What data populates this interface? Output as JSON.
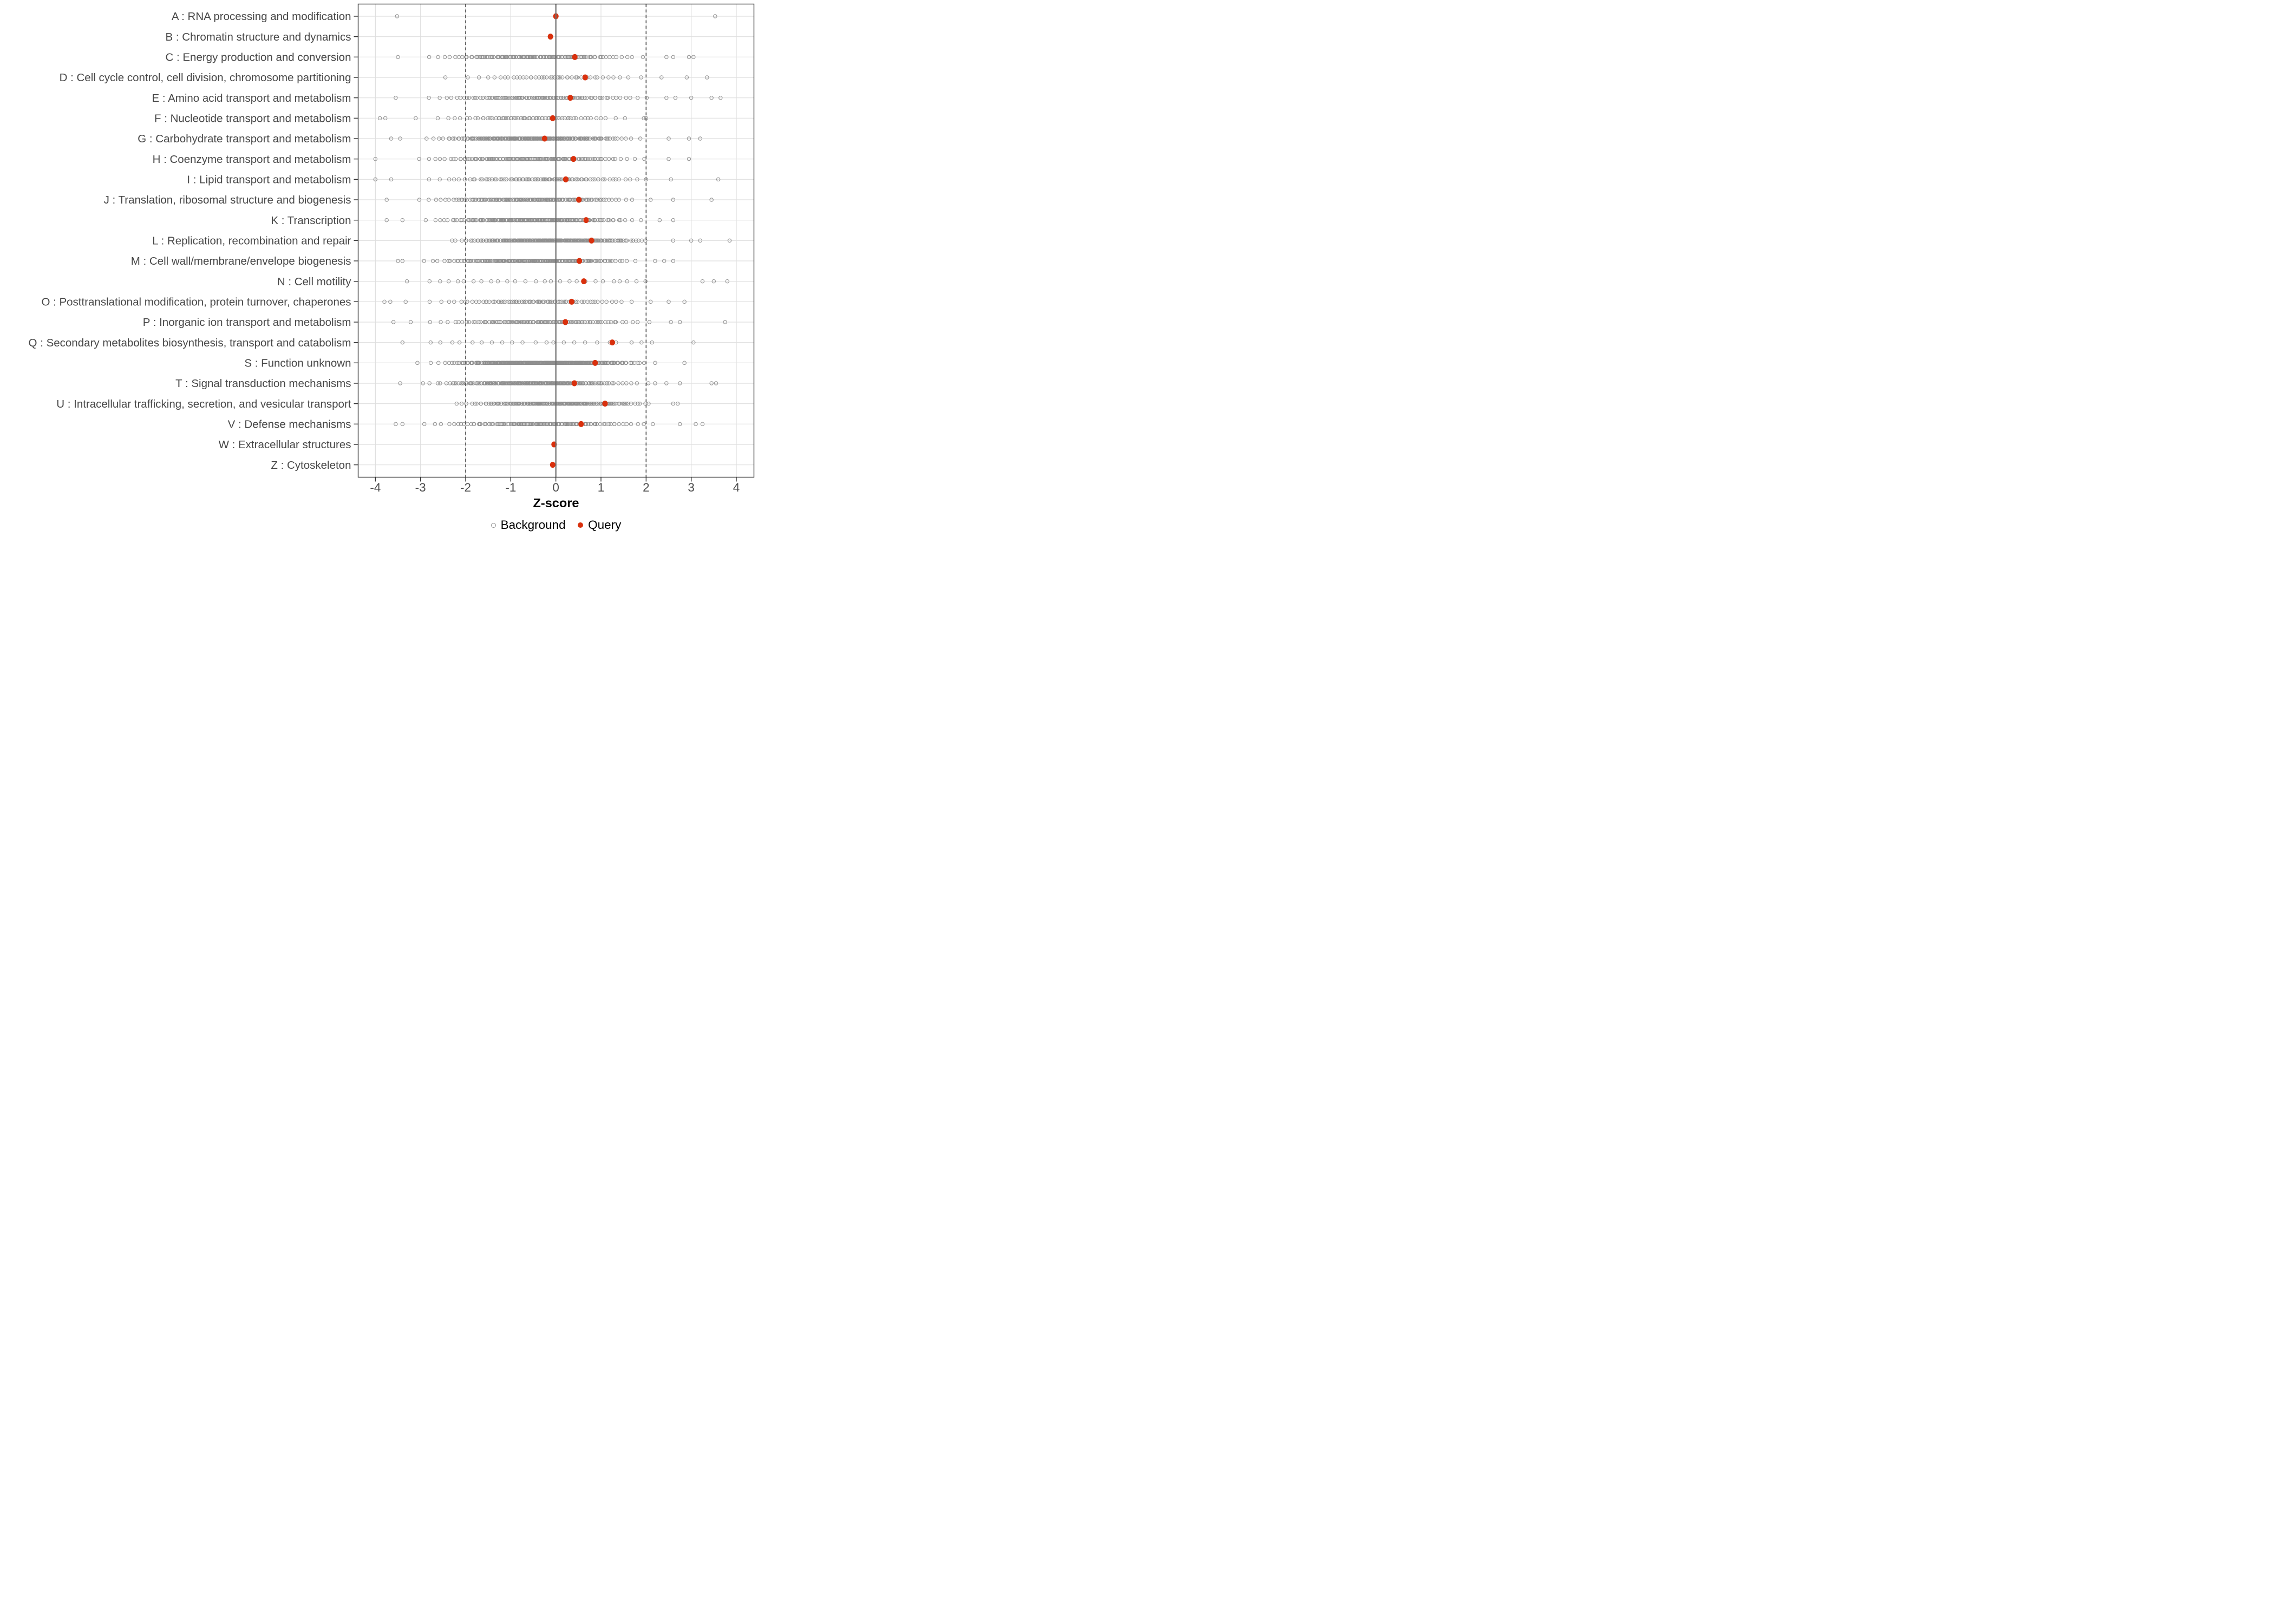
{
  "chart_data": {
    "type": "scatter",
    "variant": "horizontal-strip-plot",
    "title": "",
    "xlabel": "Z-score",
    "ylabel": "",
    "xlim": [
      -4.4,
      4.4
    ],
    "x_ticks": [
      -4,
      -3,
      -2,
      -1,
      0,
      1,
      2,
      3,
      4
    ],
    "grid": "major-only",
    "legend_position": "bottom",
    "reference_lines": {
      "solid_at": 0,
      "dashed_at": [
        -2,
        2
      ]
    },
    "colors": {
      "query": "#D9300D",
      "background_stroke": "#8F8F8F",
      "gridline": "#DEDEDE",
      "zero_line": "#6E6E6E",
      "dashed_line": "#555555",
      "panel_border": "#333333",
      "axis_text": "#4D4D4D",
      "category_text": "#474747"
    },
    "legend": {
      "items": [
        {
          "label": "Background",
          "marker": "open-circle",
          "color": "#8F8F8F"
        },
        {
          "label": "Query",
          "marker": "filled-dot",
          "color": "#D9300D"
        }
      ]
    },
    "categories": [
      {
        "code": "A",
        "label": "A : RNA processing and modification",
        "query_z": 0.0,
        "background": {
          "dist": "normal",
          "n": 0,
          "mean": 0,
          "sd": 1,
          "min": 0,
          "max": 0,
          "outliers": [
            -3.52,
            3.53
          ]
        }
      },
      {
        "code": "B",
        "label": "B : Chromatin structure and dynamics",
        "query_z": -0.12,
        "background": {
          "dist": "normal",
          "n": 0,
          "mean": 0,
          "sd": 1,
          "min": 0,
          "max": 0,
          "outliers": []
        }
      },
      {
        "code": "C",
        "label": "C : Energy production and conversion",
        "query_z": 0.42,
        "background": {
          "dist": "normal",
          "n": 125,
          "mean": -0.45,
          "sd": 1.05,
          "min": -3.1,
          "max": 2.25,
          "outliers": [
            -3.5,
            2.45,
            2.6,
            2.95,
            3.05
          ]
        }
      },
      {
        "code": "D",
        "label": "D : Cell cycle control, cell division, chromosome partitioning",
        "query_z": 0.65,
        "background": {
          "dist": "normal",
          "n": 44,
          "mean": -0.05,
          "sd": 1.05,
          "min": -2.65,
          "max": 2.4,
          "outliers": [
            2.9,
            3.35
          ]
        }
      },
      {
        "code": "E",
        "label": "E : Amino acid transport and metabolism",
        "query_z": 0.32,
        "background": {
          "dist": "normal",
          "n": 112,
          "mean": -0.4,
          "sd": 1.1,
          "min": -3.3,
          "max": 2.2,
          "outliers": [
            -3.55,
            2.45,
            2.65,
            3.0,
            3.45,
            3.65
          ]
        }
      },
      {
        "code": "F",
        "label": "F : Nucleotide transport and metabolism",
        "query_z": -0.07,
        "background": {
          "dist": "normal",
          "n": 64,
          "mean": -0.55,
          "sd": 1.05,
          "min": -3.55,
          "max": 1.75,
          "outliers": [
            -3.9,
            -3.78,
            1.95,
            2.0
          ]
        }
      },
      {
        "code": "G",
        "label": "G : Carbohydrate transport and metabolism",
        "query_z": -0.25,
        "background": {
          "dist": "normal",
          "n": 240,
          "mean": -0.5,
          "sd": 0.95,
          "min": -3.2,
          "max": 1.95,
          "outliers": [
            -3.65,
            -3.45,
            2.5,
            2.95,
            3.2
          ]
        }
      },
      {
        "code": "H",
        "label": "H : Coenzyme transport and metabolism",
        "query_z": 0.39,
        "background": {
          "dist": "normal",
          "n": 130,
          "mean": -0.55,
          "sd": 1.1,
          "min": -3.45,
          "max": 2.1,
          "outliers": [
            -4.0,
            2.5,
            2.95
          ]
        }
      },
      {
        "code": "I",
        "label": "I : Lipid transport and metabolism",
        "query_z": 0.22,
        "background": {
          "dist": "normal",
          "n": 86,
          "mean": -0.3,
          "sd": 1.2,
          "min": -3.3,
          "max": 2.2,
          "outliers": [
            -4.0,
            -3.65,
            2.55,
            3.6
          ]
        }
      },
      {
        "code": "J",
        "label": "J : Translation, ribosomal structure and biogenesis",
        "query_z": 0.51,
        "background": {
          "dist": "normal",
          "n": 150,
          "mean": -0.55,
          "sd": 1.05,
          "min": -3.25,
          "max": 1.8,
          "outliers": [
            -3.75,
            2.1,
            2.6,
            3.45
          ]
        }
      },
      {
        "code": "K",
        "label": "K : Transcription",
        "query_z": 0.67,
        "background": {
          "dist": "normal",
          "n": 180,
          "mean": -0.5,
          "sd": 1.0,
          "min": -3.1,
          "max": 1.9,
          "outliers": [
            -3.75,
            -3.4,
            2.3,
            2.6
          ]
        }
      },
      {
        "code": "L",
        "label": "L : Replication, recombination and repair",
        "query_z": 0.79,
        "background": {
          "dist": "normal",
          "n": 255,
          "mean": -0.1,
          "sd": 0.95,
          "min": -2.5,
          "max": 2.1,
          "outliers": [
            2.6,
            3.0,
            3.2,
            3.85
          ]
        }
      },
      {
        "code": "M",
        "label": "M : Cell wall/membrane/envelope biogenesis",
        "query_z": 0.52,
        "background": {
          "dist": "normal",
          "n": 195,
          "mean": -0.5,
          "sd": 1.0,
          "min": -3.2,
          "max": 1.85,
          "outliers": [
            -3.5,
            -3.4,
            2.2,
            2.4,
            2.6
          ]
        }
      },
      {
        "code": "N",
        "label": "N : Cell motility",
        "query_z": 0.62,
        "background": {
          "dist": "uniform",
          "n": 26,
          "mean": -0.4,
          "sd": 1.4,
          "min": -2.85,
          "max": 2.1,
          "outliers": [
            -3.3,
            3.25,
            3.5,
            3.8
          ]
        }
      },
      {
        "code": "O",
        "label": "O : Posttranslational modification, protein turnover, chaperones",
        "query_z": 0.35,
        "background": {
          "dist": "normal",
          "n": 76,
          "mean": -0.45,
          "sd": 1.15,
          "min": -3.45,
          "max": 1.85,
          "outliers": [
            -3.8,
            -3.67,
            2.1,
            2.5,
            2.85
          ]
        }
      },
      {
        "code": "P",
        "label": "P : Inorganic ion transport and metabolism",
        "query_z": 0.21,
        "background": {
          "dist": "normal",
          "n": 108,
          "mean": -0.35,
          "sd": 1.1,
          "min": -3.4,
          "max": 2.15,
          "outliers": [
            -3.6,
            2.55,
            2.75,
            3.75
          ]
        }
      },
      {
        "code": "Q",
        "label": "Q : Secondary metabolites biosynthesis, transport and catabolism",
        "query_z": 1.25,
        "background": {
          "dist": "uniform",
          "n": 22,
          "mean": -0.35,
          "sd": 1.5,
          "min": -2.9,
          "max": 2.2,
          "outliers": [
            -3.4,
            3.05
          ]
        }
      },
      {
        "code": "S",
        "label": "S : Function unknown",
        "query_z": 0.87,
        "background": {
          "dist": "normal",
          "n": 360,
          "mean": -0.25,
          "sd": 0.95,
          "min": -3.1,
          "max": 2.0,
          "outliers": [
            2.2,
            2.85
          ]
        }
      },
      {
        "code": "T",
        "label": "T : Signal transduction mechanisms",
        "query_z": 0.41,
        "background": {
          "dist": "normal",
          "n": 215,
          "mean": -0.5,
          "sd": 1.0,
          "min": -3.3,
          "max": 1.9,
          "outliers": [
            -3.45,
            2.05,
            2.2,
            2.45,
            2.75,
            3.45,
            3.55
          ]
        }
      },
      {
        "code": "U",
        "label": "U : Intracellular trafficking, secretion, and vesicular transport",
        "query_z": 1.09,
        "background": {
          "dist": "normal",
          "n": 185,
          "mean": 0.0,
          "sd": 1.0,
          "min": -2.4,
          "max": 2.2,
          "outliers": [
            2.6,
            2.7
          ]
        }
      },
      {
        "code": "V",
        "label": "V : Defense mechanisms",
        "query_z": 0.56,
        "background": {
          "dist": "normal",
          "n": 118,
          "mean": -0.35,
          "sd": 1.15,
          "min": -3.15,
          "max": 2.0,
          "outliers": [
            -3.55,
            -3.4,
            2.15,
            2.75,
            3.1,
            3.25
          ]
        }
      },
      {
        "code": "W",
        "label": "W : Extracellular structures",
        "query_z": -0.04,
        "background": {
          "dist": "normal",
          "n": 0,
          "mean": 0,
          "sd": 1,
          "min": 0,
          "max": 0,
          "outliers": []
        }
      },
      {
        "code": "Z",
        "label": "Z : Cytoskeleton",
        "query_z": -0.07,
        "background": {
          "dist": "normal",
          "n": 0,
          "mean": 0,
          "sd": 1,
          "min": 0,
          "max": 0,
          "outliers": []
        }
      }
    ]
  }
}
